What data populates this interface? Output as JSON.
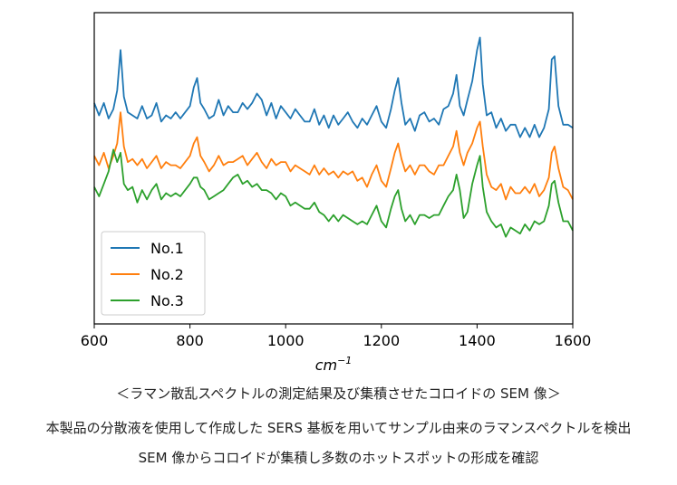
{
  "chart_data": {
    "type": "line",
    "title": "",
    "xlabel_base": "cm",
    "xlabel_exp": "−1",
    "xlim": [
      600,
      1600
    ],
    "ylim": [
      0,
      100
    ],
    "xticks": [
      600,
      800,
      1000,
      1200,
      1400,
      1600
    ],
    "show_yticks": false,
    "grid": false,
    "legend_position": "lower-left",
    "legend": [
      "No.1",
      "No.2",
      "No.3"
    ],
    "colors": [
      "#1f77b4",
      "#ff7f0e",
      "#2ca02c"
    ],
    "series": [
      {
        "name": "No.1",
        "color": "#1f77b4",
        "x": [
          600,
          610,
          620,
          630,
          640,
          648,
          655,
          662,
          670,
          680,
          690,
          700,
          710,
          720,
          730,
          740,
          750,
          760,
          770,
          780,
          790,
          800,
          808,
          815,
          822,
          830,
          840,
          850,
          860,
          870,
          880,
          890,
          900,
          910,
          920,
          930,
          940,
          950,
          960,
          970,
          980,
          990,
          1000,
          1010,
          1020,
          1030,
          1040,
          1050,
          1060,
          1070,
          1080,
          1090,
          1100,
          1110,
          1120,
          1130,
          1140,
          1150,
          1160,
          1170,
          1180,
          1190,
          1200,
          1210,
          1220,
          1228,
          1235,
          1242,
          1250,
          1260,
          1270,
          1280,
          1290,
          1300,
          1310,
          1320,
          1330,
          1340,
          1350,
          1357,
          1364,
          1372,
          1380,
          1390,
          1400,
          1406,
          1412,
          1420,
          1430,
          1440,
          1450,
          1460,
          1470,
          1480,
          1490,
          1500,
          1510,
          1520,
          1530,
          1540,
          1550,
          1556,
          1562,
          1570,
          1580,
          1590,
          1600
        ],
        "y": [
          71,
          67,
          71,
          66,
          69,
          75,
          88,
          73,
          68,
          67,
          66,
          70,
          66,
          67,
          71,
          65,
          67,
          66,
          68,
          66,
          68,
          70,
          76,
          79,
          71,
          69,
          66,
          67,
          72,
          67,
          70,
          68,
          68,
          71,
          69,
          71,
          74,
          72,
          67,
          71,
          66,
          70,
          68,
          66,
          69,
          67,
          65,
          65,
          69,
          64,
          67,
          63,
          67,
          64,
          66,
          68,
          65,
          63,
          66,
          64,
          67,
          70,
          65,
          63,
          69,
          75,
          79,
          71,
          64,
          66,
          62,
          67,
          68,
          65,
          66,
          64,
          69,
          70,
          74,
          80,
          70,
          67,
          72,
          78,
          88,
          92,
          77,
          67,
          68,
          63,
          66,
          62,
          64,
          64,
          60,
          63,
          60,
          64,
          60,
          63,
          69,
          85,
          86,
          70,
          64,
          64,
          63
        ]
      },
      {
        "name": "No.2",
        "color": "#ff7f0e",
        "x": [
          600,
          610,
          620,
          630,
          640,
          648,
          655,
          662,
          670,
          680,
          690,
          700,
          710,
          720,
          730,
          740,
          750,
          760,
          770,
          780,
          790,
          800,
          808,
          815,
          822,
          830,
          840,
          850,
          860,
          870,
          880,
          890,
          900,
          910,
          920,
          930,
          940,
          950,
          960,
          970,
          980,
          990,
          1000,
          1010,
          1020,
          1030,
          1040,
          1050,
          1060,
          1070,
          1080,
          1090,
          1100,
          1110,
          1120,
          1130,
          1140,
          1150,
          1160,
          1170,
          1180,
          1190,
          1200,
          1210,
          1220,
          1228,
          1235,
          1242,
          1250,
          1260,
          1270,
          1280,
          1290,
          1300,
          1310,
          1320,
          1330,
          1340,
          1350,
          1357,
          1364,
          1372,
          1380,
          1390,
          1400,
          1406,
          1412,
          1420,
          1430,
          1440,
          1450,
          1460,
          1470,
          1480,
          1490,
          1500,
          1510,
          1520,
          1530,
          1540,
          1550,
          1556,
          1562,
          1570,
          1580,
          1590,
          1600
        ],
        "y": [
          54,
          51,
          55,
          50,
          54,
          58,
          68,
          57,
          52,
          53,
          51,
          53,
          50,
          52,
          54,
          50,
          52,
          51,
          51,
          50,
          52,
          54,
          58,
          60,
          54,
          52,
          49,
          51,
          54,
          51,
          52,
          52,
          53,
          54,
          51,
          53,
          55,
          52,
          50,
          53,
          51,
          52,
          52,
          49,
          51,
          50,
          49,
          48,
          51,
          48,
          50,
          48,
          49,
          47,
          49,
          48,
          49,
          46,
          47,
          44,
          48,
          51,
          46,
          44,
          50,
          55,
          58,
          53,
          49,
          51,
          48,
          51,
          51,
          49,
          48,
          51,
          51,
          54,
          57,
          62,
          55,
          51,
          55,
          58,
          63,
          65,
          57,
          48,
          44,
          43,
          45,
          40,
          44,
          42,
          42,
          44,
          42,
          45,
          41,
          43,
          47,
          55,
          57,
          50,
          44,
          43,
          40
        ]
      },
      {
        "name": "No.3",
        "color": "#2ca02c",
        "x": [
          600,
          610,
          620,
          630,
          640,
          648,
          655,
          662,
          670,
          680,
          690,
          700,
          710,
          720,
          730,
          740,
          750,
          760,
          770,
          780,
          790,
          800,
          808,
          815,
          822,
          830,
          840,
          850,
          860,
          870,
          880,
          890,
          900,
          910,
          920,
          930,
          940,
          950,
          960,
          970,
          980,
          990,
          1000,
          1010,
          1020,
          1030,
          1040,
          1050,
          1060,
          1070,
          1080,
          1090,
          1100,
          1110,
          1120,
          1130,
          1140,
          1150,
          1160,
          1170,
          1180,
          1190,
          1200,
          1210,
          1220,
          1228,
          1235,
          1242,
          1250,
          1260,
          1270,
          1280,
          1290,
          1300,
          1310,
          1320,
          1330,
          1340,
          1350,
          1357,
          1364,
          1372,
          1380,
          1390,
          1400,
          1406,
          1412,
          1420,
          1430,
          1440,
          1450,
          1460,
          1470,
          1480,
          1490,
          1500,
          1510,
          1520,
          1530,
          1540,
          1550,
          1556,
          1562,
          1570,
          1580,
          1590,
          1600
        ],
        "y": [
          44,
          41,
          45,
          49,
          56,
          52,
          55,
          45,
          43,
          44,
          39,
          43,
          40,
          43,
          45,
          40,
          42,
          41,
          42,
          41,
          43,
          45,
          47,
          47,
          44,
          43,
          40,
          41,
          42,
          43,
          45,
          47,
          48,
          45,
          46,
          44,
          45,
          43,
          43,
          42,
          40,
          42,
          41,
          38,
          39,
          38,
          37,
          37,
          39,
          36,
          35,
          33,
          35,
          33,
          35,
          34,
          33,
          32,
          33,
          32,
          35,
          38,
          33,
          31,
          37,
          41,
          43,
          37,
          33,
          35,
          32,
          35,
          35,
          34,
          35,
          35,
          38,
          41,
          43,
          48,
          43,
          34,
          36,
          45,
          51,
          54,
          44,
          36,
          33,
          31,
          32,
          28,
          31,
          30,
          29,
          32,
          30,
          33,
          32,
          33,
          38,
          45,
          46,
          39,
          33,
          33,
          30
        ]
      }
    ]
  },
  "captions": {
    "title": "＜ラマン散乱スペクトルの測定結果及び集積させたコロイドの SEM 像＞",
    "line1": "本製品の分散液を使用して作成した SERS 基板を用いてサンプル由来のラマンスペクトルを検出",
    "line2": "SEM 像からコロイドが集積し多数のホットスポットの形成を確認"
  }
}
